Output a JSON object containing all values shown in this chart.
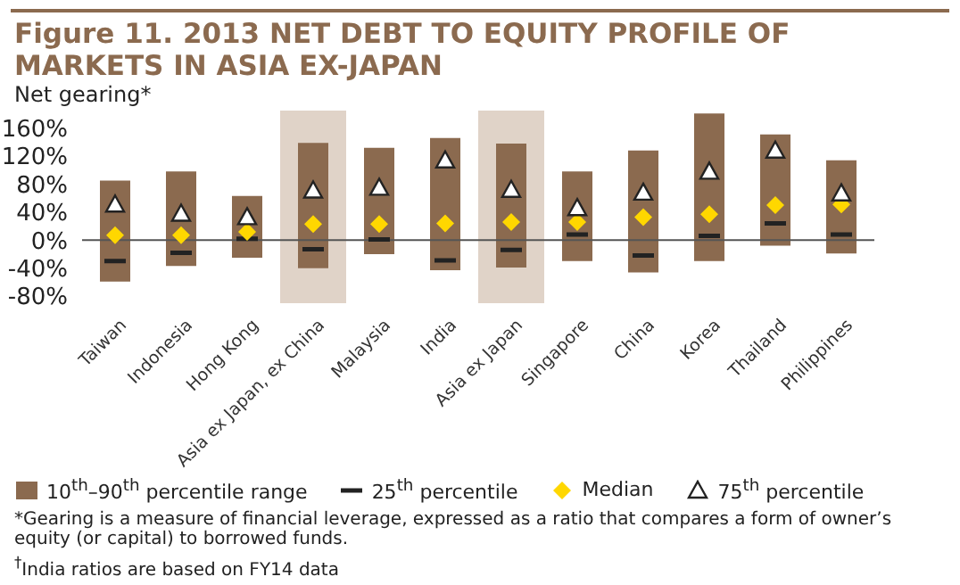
{
  "chart_data": {
    "type": "bar",
    "title": "Figure 11. 2013 NET DEBT TO EQUITY PROFILE OF MARKETS IN ASIA EX-JAPAN",
    "ylabel": "Net gearing*",
    "categories": [
      "Taiwan",
      "Indonesia",
      "Hong Kong",
      "Asia ex Japan, ex China",
      "Malaysia",
      "India",
      "Asia ex Japan",
      "Singapore",
      "China",
      "Korea",
      "Thailand",
      "Philippines"
    ],
    "series": [
      {
        "name": "10$^{th}$–90$^{th}$ percentile range",
        "color": "#8b6a4f",
        "base": [
          -59,
          -37,
          -25,
          -40,
          -20,
          -43,
          -39,
          -30,
          -46,
          -30,
          -8,
          -19
        ],
        "values": [
          144,
          135,
          88,
          179,
          152,
          189,
          177,
          128,
          174,
          211,
          159,
          133
        ]
      },
      {
        "name": "25$^{th}$ percentile",
        "type": "scatter",
        "color": "#222222",
        "values": [
          -30,
          -18,
          2,
          -13,
          1,
          -29,
          -14,
          8,
          -22,
          6,
          24,
          8
        ]
      },
      {
        "name": "Median",
        "type": "scatter",
        "marker": "diamond",
        "color": "#ffd700",
        "values": [
          7,
          7,
          12,
          23,
          23,
          24,
          26,
          26,
          33,
          37,
          50,
          51
        ]
      },
      {
        "name": "75$^{th}$ percentile",
        "type": "scatter",
        "marker": "triangle",
        "color": "#ffffff",
        "values": [
          51,
          38,
          33,
          71,
          75,
          114,
          72,
          46,
          68,
          98,
          128,
          67
        ]
      }
    ],
    "ylim": [
      -90,
      185
    ],
    "yticks": [
      {
        "value": -80,
        "label": "-80%"
      },
      {
        "value": -40,
        "label": "-40%"
      },
      {
        "value": 0,
        "label": "0%"
      },
      {
        "value": 40,
        "label": "40%"
      },
      {
        "value": 80,
        "label": "80%"
      },
      {
        "value": 120,
        "label": "120%"
      },
      {
        "value": 160,
        "label": "160%"
      }
    ],
    "ref_lines": [
      {
        "axis": "y",
        "value": 0,
        "color": "#555555"
      }
    ],
    "bands": [
      {
        "axis": "x",
        "from": "Asia ex Japan, ex China",
        "to": "Asia ex Japan, ex China",
        "color": "#e0d3c8"
      },
      {
        "axis": "x",
        "from": "Asia ex Japan",
        "to": "Asia ex Japan",
        "color": "#e0d3c8"
      }
    ],
    "legend": "bottom",
    "annotations": [
      "*Gearing is a measure of financial leverage, expressed as a ratio that compares a form of owner’s equity (or capital) to borrowed funds.",
      "$^{†}$India ratios are based on FY14 data"
    ]
  }
}
